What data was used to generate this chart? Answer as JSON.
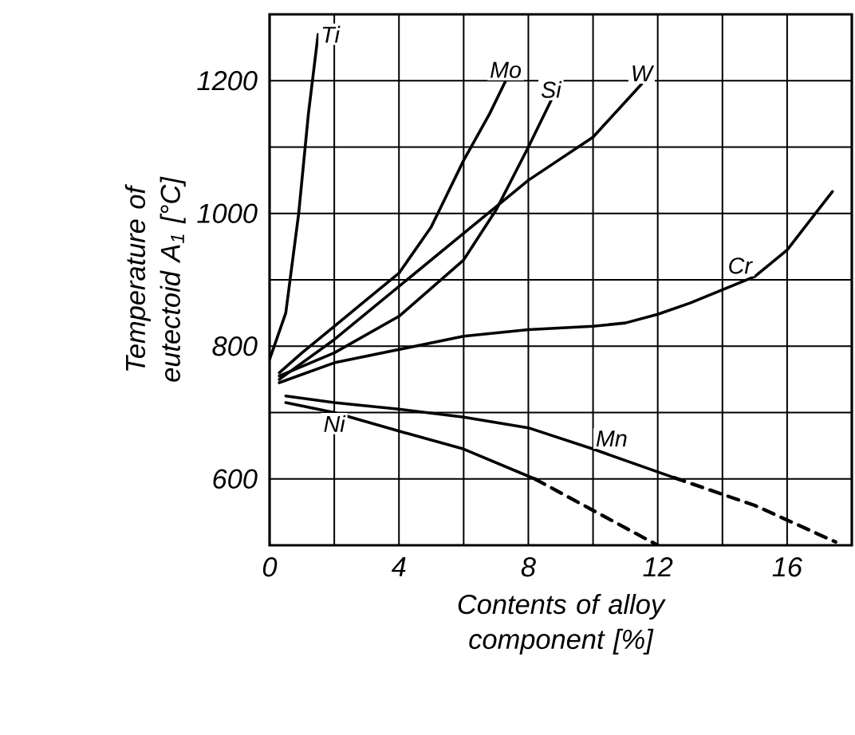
{
  "chart_data": {
    "type": "line",
    "xlabel": "Contents of alloy component [%]",
    "ylabel": "Temperature of eutectoid A$_{1}$ [°C]",
    "xlim": [
      0,
      18
    ],
    "ylim": [
      500,
      1300
    ],
    "xticks": [
      0,
      {
        "value": 2,
        "label": null
      },
      4,
      {
        "value": 6,
        "label": null
      },
      8,
      {
        "value": 10,
        "label": null
      },
      12,
      {
        "value": 14,
        "label": null
      },
      16,
      {
        "value": 18,
        "label": null
      }
    ],
    "yticks": [
      {
        "value": 500,
        "label": null
      },
      600,
      {
        "value": 700,
        "label": null
      },
      800,
      {
        "value": 900,
        "label": null
      },
      1000,
      {
        "value": 1100,
        "label": null
      },
      1200
    ],
    "grid": true,
    "marker": "none",
    "series": [
      {
        "name": "Ti",
        "color": "#000000",
        "line_style": "solid",
        "x": [
          0,
          0.5,
          0.9,
          1.2,
          1.5
        ],
        "values": [
          780,
          850,
          1000,
          1150,
          1270
        ]
      },
      {
        "name": "Mo",
        "color": "#000000",
        "line_style": "solid",
        "x": [
          0.3,
          1,
          2,
          3,
          4,
          5,
          6,
          6.8,
          7.3
        ],
        "values": [
          760,
          790,
          830,
          870,
          910,
          980,
          1080,
          1150,
          1200
        ]
      },
      {
        "name": "Si",
        "color": "#000000",
        "line_style": "solid",
        "x": [
          0.3,
          2,
          4,
          6,
          7,
          8,
          8.7
        ],
        "values": [
          755,
          790,
          845,
          930,
          1005,
          1100,
          1170
        ]
      },
      {
        "name": "W",
        "color": "#000000",
        "line_style": "solid",
        "x": [
          0.3,
          2,
          4,
          6,
          8,
          10,
          11.5
        ],
        "values": [
          750,
          810,
          890,
          970,
          1050,
          1115,
          1195
        ]
      },
      {
        "name": "Cr",
        "color": "#000000",
        "line_style": "solid",
        "x": [
          0.3,
          2,
          4,
          6,
          8,
          10,
          11,
          12,
          13,
          14,
          15,
          16,
          17.4
        ],
        "values": [
          745,
          775,
          795,
          815,
          825,
          830,
          835,
          848,
          865,
          885,
          905,
          945,
          1033
        ]
      },
      {
        "name": "Mn",
        "color": "#000000",
        "line_style": "solid",
        "x": [
          0.5,
          2,
          4,
          6,
          8,
          10,
          12.5
        ],
        "values": [
          725,
          715,
          705,
          693,
          677,
          645,
          602
        ]
      },
      {
        "color": "#000000",
        "line_style": "dashed",
        "x": [
          12.5,
          15,
          17.5
        ],
        "values": [
          602,
          560,
          505
        ]
      },
      {
        "name": "Ni",
        "color": "#000000",
        "line_style": "solid",
        "x": [
          0.5,
          2,
          4,
          6,
          8.2
        ],
        "values": [
          715,
          700,
          672,
          645,
          600
        ]
      },
      {
        "color": "#000000",
        "line_style": "dashed",
        "x": [
          8.2,
          12
        ],
        "values": [
          600,
          500
        ]
      }
    ]
  }
}
